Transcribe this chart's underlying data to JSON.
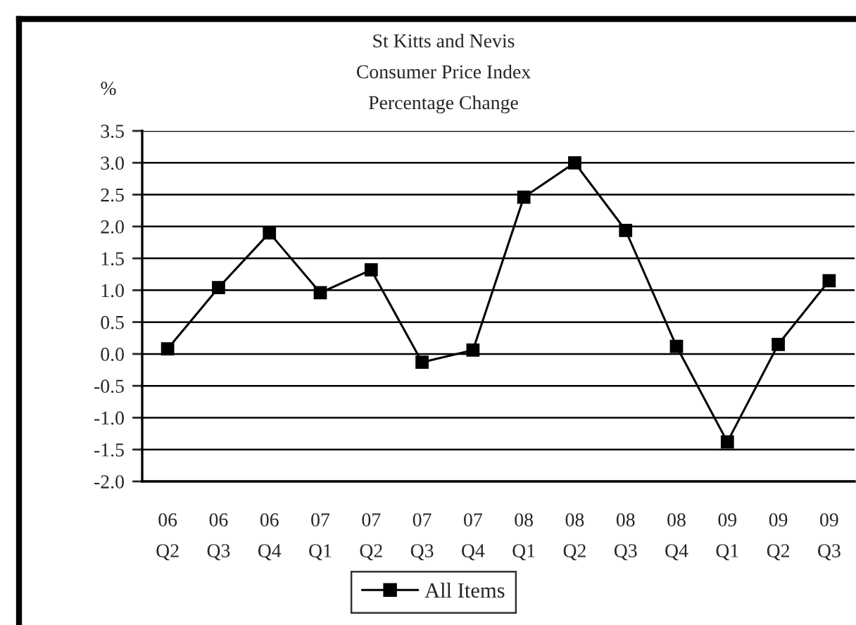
{
  "chart_data": {
    "type": "line",
    "title": "St Kitts and Nevis\nConsumer Price Index\nPercentage Change",
    "ylabel": "%",
    "categories": [
      "06\nQ2",
      "06\nQ3",
      "06\nQ4",
      "07\nQ1",
      "07\nQ2",
      "07\nQ3",
      "07\nQ4",
      "08\nQ1",
      "08\nQ2",
      "08\nQ3",
      "08\nQ4",
      "09\nQ1",
      "09\nQ2",
      "09\nQ3"
    ],
    "series": [
      {
        "name": "All Items",
        "color": "#000000",
        "values": [
          0.08,
          1.04,
          1.9,
          0.96,
          1.32,
          -0.13,
          0.06,
          2.46,
          3.0,
          1.94,
          0.12,
          -1.38,
          0.15,
          1.15
        ]
      }
    ],
    "ylim": [
      -2.0,
      3.5
    ],
    "yticks": [
      {
        "value": -2.0,
        "label": "-2.0"
      },
      {
        "value": -1.5,
        "label": "-1.5"
      },
      {
        "value": -1.0,
        "label": "-1.0"
      },
      {
        "value": -0.5,
        "label": "-0.5"
      },
      {
        "value": 0.0,
        "label": "0.0"
      },
      {
        "value": 0.5,
        "label": "0.5"
      },
      {
        "value": 1.0,
        "label": "1.0"
      },
      {
        "value": 1.5,
        "label": "1.5"
      },
      {
        "value": 2.0,
        "label": "2.0"
      },
      {
        "value": 2.5,
        "label": "2.5"
      },
      {
        "value": 3.0,
        "label": "3.0"
      },
      {
        "value": 3.5,
        "label": "3.5"
      }
    ],
    "grid": "y",
    "legend": "bottom",
    "marker": "square",
    "line_style": "solid"
  }
}
